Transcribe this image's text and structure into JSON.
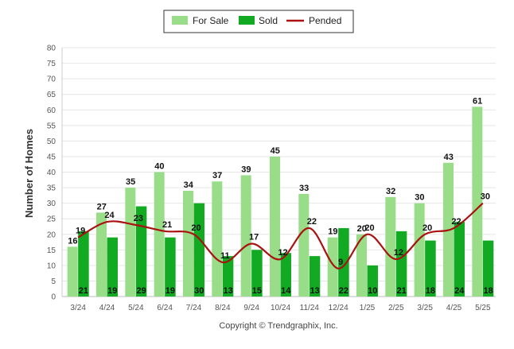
{
  "chart_data": {
    "type": "bar",
    "title": "",
    "xlabel": "",
    "ylabel": "Number of Homes",
    "ylim": [
      0,
      80
    ],
    "yticks": [
      0,
      5,
      10,
      15,
      20,
      25,
      30,
      35,
      40,
      45,
      50,
      55,
      60,
      65,
      70,
      75,
      80
    ],
    "grid": true,
    "legend_position": "top-center",
    "categories": [
      "3/24",
      "4/24",
      "5/24",
      "6/24",
      "7/24",
      "8/24",
      "9/24",
      "10/24",
      "11/24",
      "12/24",
      "1/25",
      "2/25",
      "3/25",
      "4/25",
      "5/25"
    ],
    "series": [
      {
        "name": "For Sale",
        "kind": "bar",
        "color": "#99dd88",
        "values": [
          16,
          27,
          35,
          40,
          34,
          37,
          39,
          45,
          33,
          19,
          20,
          32,
          30,
          43,
          61
        ]
      },
      {
        "name": "Sold",
        "kind": "bar",
        "color": "#11aa22",
        "values": [
          21,
          19,
          29,
          19,
          30,
          13,
          15,
          14,
          13,
          22,
          10,
          21,
          18,
          24,
          18
        ]
      },
      {
        "name": "Pended",
        "kind": "line",
        "color": "#aa1111",
        "values": [
          19,
          24,
          23,
          21,
          20,
          11,
          17,
          12,
          22,
          9,
          20,
          12,
          20,
          22,
          30
        ]
      }
    ]
  },
  "footer": {
    "copyright": "Copyright © Trendgraphix, Inc."
  }
}
